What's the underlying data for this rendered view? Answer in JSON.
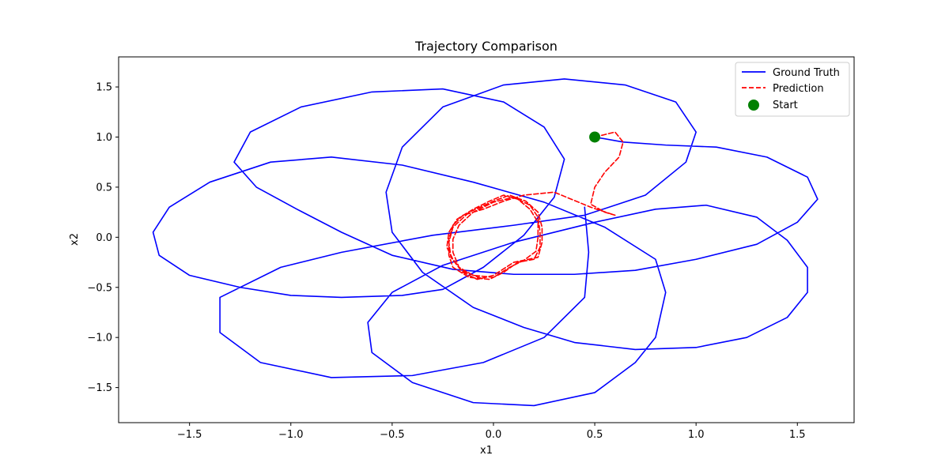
{
  "chart_data": {
    "type": "line",
    "title": "Trajectory Comparison",
    "xlabel": "x1",
    "ylabel": "x2",
    "xlim": [
      -1.85,
      1.78
    ],
    "ylim": [
      -1.85,
      1.8
    ],
    "xticks": [
      -1.5,
      -1.0,
      -0.5,
      0.0,
      0.5,
      1.0,
      1.5
    ],
    "yticks": [
      -1.5,
      -1.0,
      -0.5,
      0.0,
      0.5,
      1.0,
      1.5
    ],
    "xtick_labels": [
      "−1.5",
      "−1.0",
      "−0.5",
      "0.0",
      "0.5",
      "1.0",
      "1.5"
    ],
    "ytick_labels": [
      "−1.5",
      "−1.0",
      "−0.5",
      "0.0",
      "0.5",
      "1.0",
      "1.5"
    ],
    "grid": false,
    "legend_position": "top-right",
    "series": [
      {
        "name": "Ground Truth",
        "style": "solid",
        "color": "#0000ff",
        "points": [
          [
            0.5,
            1.0
          ],
          [
            0.64,
            0.95
          ],
          [
            0.85,
            0.92
          ],
          [
            1.1,
            0.9
          ],
          [
            1.35,
            0.8
          ],
          [
            1.55,
            0.6
          ],
          [
            1.6,
            0.38
          ],
          [
            1.5,
            0.15
          ],
          [
            1.3,
            -0.07
          ],
          [
            1.0,
            -0.22
          ],
          [
            0.7,
            -0.33
          ],
          [
            0.4,
            -0.37
          ],
          [
            0.1,
            -0.37
          ],
          [
            -0.2,
            -0.32
          ],
          [
            -0.5,
            -0.18
          ],
          [
            -0.75,
            0.05
          ],
          [
            -0.97,
            0.28
          ],
          [
            -1.17,
            0.5
          ],
          [
            -1.28,
            0.75
          ],
          [
            -1.2,
            1.05
          ],
          [
            -0.95,
            1.3
          ],
          [
            -0.6,
            1.45
          ],
          [
            -0.25,
            1.48
          ],
          [
            0.05,
            1.35
          ],
          [
            0.25,
            1.1
          ],
          [
            0.35,
            0.78
          ],
          [
            0.3,
            0.4
          ],
          [
            0.15,
            0.02
          ],
          [
            -0.05,
            -0.3
          ],
          [
            -0.25,
            -0.52
          ],
          [
            -0.45,
            -0.58
          ],
          [
            -0.75,
            -0.6
          ],
          [
            -1.0,
            -0.58
          ],
          [
            -1.25,
            -0.5
          ],
          [
            -1.5,
            -0.38
          ],
          [
            -1.65,
            -0.18
          ],
          [
            -1.68,
            0.05
          ],
          [
            -1.6,
            0.3
          ],
          [
            -1.4,
            0.55
          ],
          [
            -1.1,
            0.75
          ],
          [
            -0.8,
            0.8
          ],
          [
            -0.45,
            0.72
          ],
          [
            -0.1,
            0.55
          ],
          [
            0.25,
            0.35
          ],
          [
            0.55,
            0.1
          ],
          [
            0.8,
            -0.22
          ],
          [
            0.85,
            -0.55
          ],
          [
            0.8,
            -1.0
          ],
          [
            0.7,
            -1.25
          ],
          [
            0.5,
            -1.55
          ],
          [
            0.2,
            -1.68
          ],
          [
            -0.1,
            -1.65
          ],
          [
            -0.4,
            -1.45
          ],
          [
            -0.6,
            -1.15
          ],
          [
            -0.62,
            -0.85
          ],
          [
            -0.5,
            -0.55
          ],
          [
            -0.25,
            -0.28
          ],
          [
            0.1,
            -0.05
          ],
          [
            0.5,
            0.15
          ],
          [
            0.8,
            0.28
          ],
          [
            1.05,
            0.32
          ],
          [
            1.3,
            0.2
          ],
          [
            1.45,
            -0.03
          ],
          [
            1.55,
            -0.3
          ],
          [
            1.55,
            -0.55
          ],
          [
            1.45,
            -0.8
          ],
          [
            1.25,
            -1.0
          ],
          [
            1.0,
            -1.1
          ],
          [
            0.7,
            -1.12
          ],
          [
            0.4,
            -1.05
          ],
          [
            0.15,
            -0.9
          ],
          [
            -0.1,
            -0.7
          ],
          [
            -0.35,
            -0.35
          ],
          [
            -0.5,
            0.05
          ],
          [
            -0.53,
            0.45
          ],
          [
            -0.45,
            0.9
          ],
          [
            -0.25,
            1.3
          ],
          [
            0.05,
            1.52
          ],
          [
            0.35,
            1.58
          ],
          [
            0.65,
            1.52
          ],
          [
            0.9,
            1.35
          ],
          [
            1.0,
            1.05
          ],
          [
            0.95,
            0.75
          ],
          [
            0.75,
            0.42
          ],
          [
            0.45,
            0.22
          ],
          [
            0.1,
            0.12
          ],
          [
            -0.3,
            0.02
          ],
          [
            -0.75,
            -0.15
          ],
          [
            -1.05,
            -0.3
          ],
          [
            -1.35,
            -0.6
          ],
          [
            -1.35,
            -0.95
          ],
          [
            -1.15,
            -1.25
          ],
          [
            -0.8,
            -1.4
          ],
          [
            -0.4,
            -1.38
          ],
          [
            -0.05,
            -1.25
          ],
          [
            0.25,
            -1.0
          ],
          [
            0.45,
            -0.6
          ],
          [
            0.47,
            -0.15
          ],
          [
            0.45,
            0.3
          ]
        ]
      },
      {
        "name": "Prediction",
        "style": "dashed",
        "color": "#ff0000",
        "points": [
          [
            0.5,
            1.0
          ],
          [
            0.6,
            1.05
          ],
          [
            0.64,
            0.95
          ],
          [
            0.62,
            0.8
          ],
          [
            0.55,
            0.65
          ],
          [
            0.5,
            0.5
          ],
          [
            0.48,
            0.33
          ],
          [
            0.55,
            0.25
          ],
          [
            0.6,
            0.22
          ],
          [
            0.48,
            0.3
          ],
          [
            0.3,
            0.45
          ],
          [
            0.15,
            0.42
          ],
          [
            0.05,
            0.36
          ],
          [
            -0.05,
            0.28
          ],
          [
            -0.15,
            0.22
          ],
          [
            -0.2,
            0.12
          ],
          [
            -0.22,
            -0.02
          ],
          [
            -0.22,
            -0.18
          ],
          [
            -0.2,
            -0.3
          ],
          [
            -0.12,
            -0.4
          ],
          [
            -0.02,
            -0.42
          ],
          [
            0.05,
            -0.35
          ],
          [
            0.12,
            -0.25
          ],
          [
            0.2,
            -0.22
          ],
          [
            0.23,
            -0.1
          ],
          [
            0.23,
            0.05
          ],
          [
            0.22,
            0.2
          ],
          [
            0.18,
            0.32
          ],
          [
            0.1,
            0.4
          ],
          [
            0.0,
            0.35
          ],
          [
            -0.1,
            0.25
          ],
          [
            -0.17,
            0.12
          ],
          [
            -0.2,
            -0.02
          ],
          [
            -0.2,
            -0.15
          ],
          [
            -0.17,
            -0.3
          ],
          [
            -0.1,
            -0.38
          ],
          [
            0.0,
            -0.4
          ],
          [
            0.08,
            -0.3
          ],
          [
            0.15,
            -0.23
          ],
          [
            0.21,
            -0.14
          ],
          [
            0.22,
            0.0
          ],
          [
            0.22,
            0.15
          ],
          [
            0.18,
            0.28
          ],
          [
            0.12,
            0.38
          ],
          [
            0.05,
            0.42
          ],
          [
            -0.02,
            0.36
          ],
          [
            -0.1,
            0.28
          ],
          [
            -0.18,
            0.18
          ],
          [
            -0.22,
            0.05
          ],
          [
            -0.23,
            -0.1
          ],
          [
            -0.2,
            -0.22
          ],
          [
            -0.15,
            -0.35
          ],
          [
            -0.08,
            -0.42
          ],
          [
            0.0,
            -0.38
          ],
          [
            0.1,
            -0.25
          ],
          [
            0.22,
            -0.2
          ],
          [
            0.24,
            -0.05
          ],
          [
            0.24,
            0.1
          ],
          [
            0.22,
            0.25
          ],
          [
            0.16,
            0.36
          ],
          [
            0.08,
            0.42
          ],
          [
            0.0,
            0.36
          ],
          [
            -0.12,
            0.25
          ],
          [
            -0.2,
            0.1
          ],
          [
            -0.22,
            -0.05
          ],
          [
            -0.21,
            -0.2
          ],
          [
            -0.16,
            -0.33
          ],
          [
            -0.06,
            -0.41
          ]
        ]
      }
    ],
    "markers": [
      {
        "name": "Start",
        "x": 0.5,
        "y": 1.0,
        "color": "#008000"
      }
    ]
  }
}
